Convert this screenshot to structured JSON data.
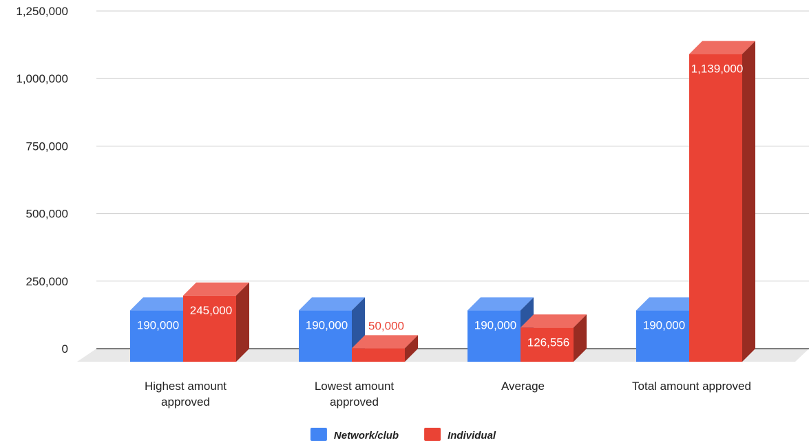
{
  "chart_data": {
    "type": "bar",
    "style": "3d-grouped",
    "categories": [
      [
        "Highest amount",
        "approved"
      ],
      [
        "Lowest amount",
        "approved"
      ],
      [
        "Average"
      ],
      [
        "Total amount approved"
      ]
    ],
    "series": [
      {
        "name": "Network/club",
        "values": [
          190000,
          190000,
          190000,
          190000
        ],
        "labels": [
          "190,000",
          "190,000",
          "190,000",
          "190,000"
        ],
        "color": "#4285f4"
      },
      {
        "name": "Individual",
        "values": [
          245000,
          50000,
          126556,
          1139000
        ],
        "labels": [
          "245,000",
          "50,000",
          "126,556",
          "1,139,000"
        ],
        "color": "#ea4335"
      }
    ],
    "y_ticks": [
      0,
      250000,
      500000,
      750000,
      1000000,
      1250000
    ],
    "y_tick_labels": [
      "0",
      "250,000",
      "500,000",
      "750,000",
      "1,000,000",
      "1,250,000"
    ],
    "ylim": [
      0,
      1250000
    ],
    "grid": true,
    "legend_position": "bottom",
    "title": "",
    "xlabel": "",
    "ylabel": ""
  }
}
